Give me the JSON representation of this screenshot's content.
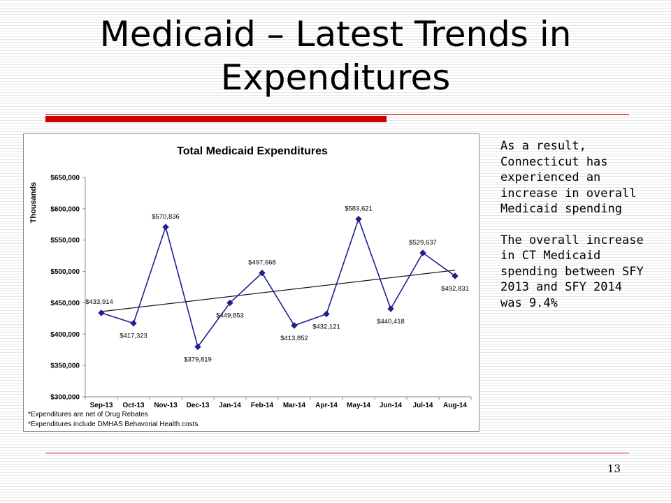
{
  "slide": {
    "title": "Medicaid – Latest Trends in Expenditures",
    "paragraphs": [
      "As a result, Connecticut has experienced an increase in overall Medicaid spending",
      "The overall increase in CT Medicaid spending between SFY 2013 and SFY 2014 was 9.4%"
    ],
    "page_number": "13"
  },
  "colors": {
    "accent": "#cc0000",
    "series": "#1f1f8f",
    "trendline": "#1a1a1a"
  },
  "chart_data": {
    "type": "line",
    "title": "Total Medicaid Expenditures",
    "ylabel": "Thousands",
    "xlabel": "",
    "categories": [
      "Sep-13",
      "Oct-13",
      "Nov-13",
      "Dec-13",
      "Jan-14",
      "Feb-14",
      "Mar-14",
      "Apr-14",
      "May-14",
      "Jun-14",
      "Jul-14",
      "Aug-14"
    ],
    "series": [
      {
        "values": [
          433914,
          417323,
          570836,
          379819,
          449853,
          497668,
          413852,
          432121,
          583621,
          440418,
          529637,
          492831
        ],
        "labels": [
          "$433,914",
          "$417,323",
          "$570,836",
          "$379,819",
          "$449,853",
          "$497,668",
          "$413,852",
          "$432,121",
          "$583,621",
          "$440,418",
          "$529,637",
          "$492,831"
        ],
        "marker": "diamond"
      }
    ],
    "trendline": {
      "type": "linear",
      "start": 436000,
      "end": 502000
    },
    "ylim": [
      300000,
      650000
    ],
    "yticks": [
      300000,
      350000,
      400000,
      450000,
      500000,
      550000,
      600000,
      650000
    ],
    "ytick_labels": [
      "$300,000",
      "$350,000",
      "$400,000",
      "$450,000",
      "$500,000",
      "$550,000",
      "$600,000",
      "$650,000"
    ],
    "grid": false,
    "legend": "none",
    "footnotes": [
      "*Expenditures are net of Drug Rebates",
      "*Expenditures include DMHAS Behavorial Health costs"
    ]
  }
}
